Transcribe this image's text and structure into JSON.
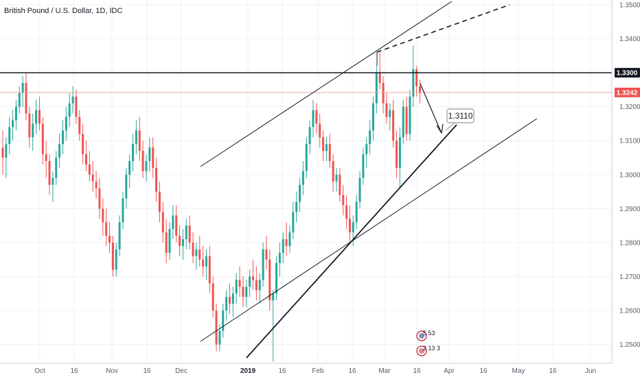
{
  "chart_data": {
    "type": "candlestick",
    "title": "British Pound / U.S. Dollar, 1D, IDC",
    "yaxis": {
      "ticks": [
        "1.3500",
        "1.3400",
        "1.3200",
        "1.3100",
        "1.3000",
        "1.2900",
        "1.2800",
        "1.2700",
        "1.2600",
        "1.2500"
      ],
      "range": [
        1.243,
        1.353
      ]
    },
    "xaxis": {
      "ticks": [
        {
          "label": "Oct",
          "bold": false
        },
        {
          "label": "16",
          "bold": false
        },
        {
          "label": "Nov",
          "bold": false
        },
        {
          "label": "16",
          "bold": false
        },
        {
          "label": "Dec",
          "bold": false
        },
        {
          "label": "2019",
          "bold": true
        },
        {
          "label": "16",
          "bold": false
        },
        {
          "label": "Feb",
          "bold": false
        },
        {
          "label": "16",
          "bold": false
        },
        {
          "label": "Mar",
          "bold": false
        },
        {
          "label": "16",
          "bold": false
        },
        {
          "label": "Apr",
          "bold": false
        },
        {
          "label": "16",
          "bold": false
        },
        {
          "label": "May",
          "bold": false
        },
        {
          "label": "16",
          "bold": false
        },
        {
          "label": "Jun",
          "bold": false
        }
      ]
    },
    "price_tags": [
      {
        "value": "1.3300",
        "color": "#131722",
        "line": "solid"
      },
      {
        "value": "1.3242",
        "color": "#ef5350",
        "line": "thin"
      }
    ],
    "annotation": {
      "label": "1.3110"
    },
    "events": [
      {
        "label": "5 53"
      },
      {
        "label": "2 13 3"
      }
    ],
    "colors": {
      "up": "#26a69a",
      "down": "#ef5350",
      "grid": "#eef0f3",
      "line": "#131722"
    },
    "ohlc": [
      [
        1.308,
        1.313,
        1.3,
        1.305
      ],
      [
        1.305,
        1.311,
        1.299,
        1.309
      ],
      [
        1.309,
        1.317,
        1.306,
        1.314
      ],
      [
        1.314,
        1.319,
        1.31,
        1.316
      ],
      [
        1.316,
        1.322,
        1.313,
        1.32
      ],
      [
        1.32,
        1.326,
        1.318,
        1.324
      ],
      [
        1.324,
        1.329,
        1.32,
        1.327
      ],
      [
        1.327,
        1.33,
        1.316,
        1.318
      ],
      [
        1.318,
        1.32,
        1.308,
        1.311
      ],
      [
        1.311,
        1.318,
        1.307,
        1.315
      ],
      [
        1.315,
        1.322,
        1.312,
        1.319
      ],
      [
        1.319,
        1.323,
        1.313,
        1.315
      ],
      [
        1.315,
        1.317,
        1.303,
        1.306
      ],
      [
        1.306,
        1.31,
        1.299,
        1.304
      ],
      [
        1.304,
        1.306,
        1.294,
        1.297
      ],
      [
        1.297,
        1.301,
        1.292,
        1.299
      ],
      [
        1.299,
        1.307,
        1.297,
        1.305
      ],
      [
        1.305,
        1.312,
        1.302,
        1.309
      ],
      [
        1.309,
        1.316,
        1.306,
        1.313
      ],
      [
        1.313,
        1.32,
        1.31,
        1.317
      ],
      [
        1.317,
        1.324,
        1.314,
        1.321
      ],
      [
        1.321,
        1.326,
        1.318,
        1.323
      ],
      [
        1.323,
        1.325,
        1.315,
        1.317
      ],
      [
        1.317,
        1.319,
        1.31,
        1.312
      ],
      [
        1.312,
        1.315,
        1.303,
        1.306
      ],
      [
        1.306,
        1.31,
        1.301,
        1.303
      ],
      [
        1.303,
        1.307,
        1.298,
        1.3
      ],
      [
        1.3,
        1.304,
        1.295,
        1.298
      ],
      [
        1.298,
        1.301,
        1.293,
        1.296
      ],
      [
        1.296,
        1.299,
        1.287,
        1.29
      ],
      [
        1.29,
        1.293,
        1.282,
        1.286
      ],
      [
        1.286,
        1.29,
        1.279,
        1.282
      ],
      [
        1.282,
        1.286,
        1.277,
        1.28
      ],
      [
        1.28,
        1.282,
        1.27,
        1.272
      ],
      [
        1.272,
        1.28,
        1.27,
        1.278
      ],
      [
        1.278,
        1.288,
        1.276,
        1.286
      ],
      [
        1.286,
        1.295,
        1.284,
        1.293
      ],
      [
        1.293,
        1.302,
        1.29,
        1.3
      ],
      [
        1.3,
        1.306,
        1.296,
        1.304
      ],
      [
        1.304,
        1.312,
        1.301,
        1.309
      ],
      [
        1.309,
        1.316,
        1.306,
        1.313
      ],
      [
        1.313,
        1.317,
        1.304,
        1.307
      ],
      [
        1.307,
        1.31,
        1.299,
        1.301
      ],
      [
        1.301,
        1.306,
        1.298,
        1.304
      ],
      [
        1.304,
        1.311,
        1.301,
        1.308
      ],
      [
        1.308,
        1.311,
        1.299,
        1.302
      ],
      [
        1.302,
        1.305,
        1.292,
        1.295
      ],
      [
        1.295,
        1.298,
        1.286,
        1.289
      ],
      [
        1.289,
        1.292,
        1.28,
        1.283
      ],
      [
        1.283,
        1.287,
        1.274,
        1.277
      ],
      [
        1.277,
        1.286,
        1.275,
        1.284
      ],
      [
        1.284,
        1.291,
        1.281,
        1.288
      ],
      [
        1.288,
        1.291,
        1.28,
        1.282
      ],
      [
        1.282,
        1.285,
        1.276,
        1.279
      ],
      [
        1.279,
        1.284,
        1.275,
        1.281
      ],
      [
        1.281,
        1.287,
        1.278,
        1.285
      ],
      [
        1.285,
        1.288,
        1.278,
        1.28
      ],
      [
        1.28,
        1.283,
        1.274,
        1.276
      ],
      [
        1.276,
        1.28,
        1.272,
        1.278
      ],
      [
        1.278,
        1.282,
        1.273,
        1.275
      ],
      [
        1.275,
        1.279,
        1.27,
        1.273
      ],
      [
        1.273,
        1.278,
        1.269,
        1.276
      ],
      [
        1.276,
        1.279,
        1.265,
        1.268
      ],
      [
        1.268,
        1.27,
        1.258,
        1.26
      ],
      [
        1.26,
        1.262,
        1.248,
        1.25
      ],
      [
        1.25,
        1.256,
        1.248,
        1.254
      ],
      [
        1.254,
        1.262,
        1.252,
        1.26
      ],
      [
        1.26,
        1.266,
        1.257,
        1.264
      ],
      [
        1.264,
        1.268,
        1.259,
        1.262
      ],
      [
        1.262,
        1.267,
        1.258,
        1.265
      ],
      [
        1.265,
        1.271,
        1.262,
        1.269
      ],
      [
        1.269,
        1.273,
        1.264,
        1.267
      ],
      [
        1.267,
        1.27,
        1.261,
        1.264
      ],
      [
        1.264,
        1.269,
        1.261,
        1.267
      ],
      [
        1.267,
        1.272,
        1.264,
        1.27
      ],
      [
        1.27,
        1.275,
        1.266,
        1.269
      ],
      [
        1.269,
        1.273,
        1.263,
        1.266
      ],
      [
        1.266,
        1.271,
        1.262,
        1.269
      ],
      [
        1.269,
        1.28,
        1.267,
        1.278
      ],
      [
        1.278,
        1.282,
        1.272,
        1.275
      ],
      [
        1.275,
        1.278,
        1.26,
        1.263
      ],
      [
        1.263,
        1.266,
        1.245,
        1.265
      ],
      [
        1.265,
        1.276,
        1.263,
        1.274
      ],
      [
        1.274,
        1.28,
        1.27,
        1.277
      ],
      [
        1.277,
        1.283,
        1.274,
        1.281
      ],
      [
        1.281,
        1.286,
        1.276,
        1.279
      ],
      [
        1.279,
        1.285,
        1.277,
        1.283
      ],
      [
        1.283,
        1.292,
        1.281,
        1.289
      ],
      [
        1.289,
        1.295,
        1.286,
        1.292
      ],
      [
        1.292,
        1.299,
        1.289,
        1.297
      ],
      [
        1.297,
        1.304,
        1.294,
        1.301
      ],
      [
        1.301,
        1.311,
        1.299,
        1.309
      ],
      [
        1.309,
        1.316,
        1.306,
        1.314
      ],
      [
        1.314,
        1.322,
        1.311,
        1.319
      ],
      [
        1.319,
        1.321,
        1.312,
        1.315
      ],
      [
        1.315,
        1.318,
        1.308,
        1.311
      ],
      [
        1.311,
        1.313,
        1.304,
        1.307
      ],
      [
        1.307,
        1.311,
        1.304,
        1.309
      ],
      [
        1.309,
        1.312,
        1.302,
        1.304
      ],
      [
        1.304,
        1.306,
        1.295,
        1.298
      ],
      [
        1.298,
        1.302,
        1.295,
        1.3
      ],
      [
        1.3,
        1.302,
        1.292,
        1.294
      ],
      [
        1.294,
        1.297,
        1.288,
        1.291
      ],
      [
        1.291,
        1.294,
        1.284,
        1.287
      ],
      [
        1.287,
        1.291,
        1.28,
        1.283
      ],
      [
        1.283,
        1.288,
        1.279,
        1.286
      ],
      [
        1.286,
        1.294,
        1.284,
        1.292
      ],
      [
        1.292,
        1.301,
        1.29,
        1.299
      ],
      [
        1.299,
        1.308,
        1.297,
        1.306
      ],
      [
        1.306,
        1.311,
        1.302,
        1.309
      ],
      [
        1.309,
        1.316,
        1.306,
        1.313
      ],
      [
        1.313,
        1.323,
        1.31,
        1.321
      ],
      [
        1.321,
        1.332,
        1.318,
        1.33
      ],
      [
        1.33,
        1.336,
        1.325,
        1.327
      ],
      [
        1.327,
        1.329,
        1.318,
        1.321
      ],
      [
        1.321,
        1.324,
        1.315,
        1.317
      ],
      [
        1.317,
        1.321,
        1.313,
        1.319
      ],
      [
        1.319,
        1.322,
        1.308,
        1.31
      ],
      [
        1.31,
        1.313,
        1.299,
        1.302
      ],
      [
        1.302,
        1.314,
        1.296,
        1.311
      ],
      [
        1.311,
        1.322,
        1.309,
        1.32
      ],
      [
        1.32,
        1.323,
        1.31,
        1.312
      ],
      [
        1.312,
        1.325,
        1.31,
        1.323
      ],
      [
        1.323,
        1.338,
        1.32,
        1.331
      ],
      [
        1.331,
        1.332,
        1.323,
        1.326
      ],
      [
        1.326,
        1.328,
        1.321,
        1.324
      ]
    ]
  }
}
